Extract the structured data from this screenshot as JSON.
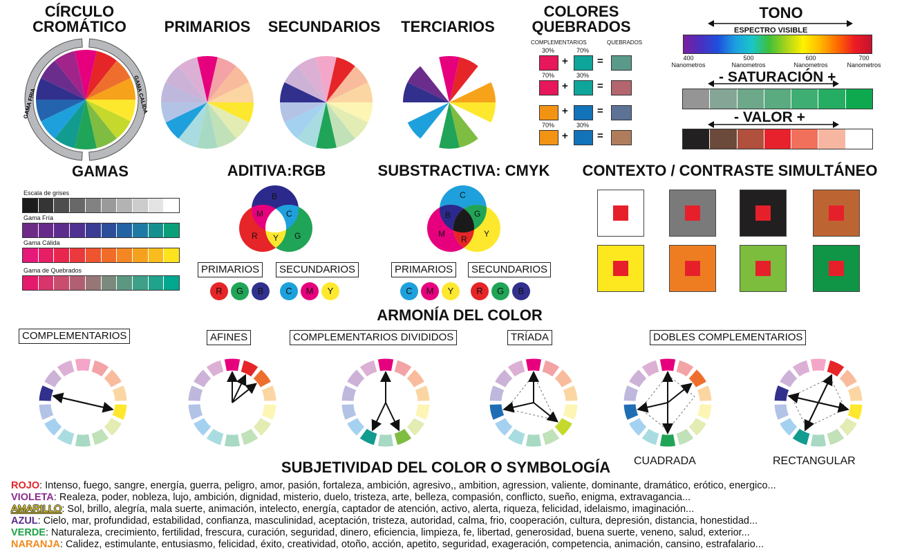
{
  "titles": {
    "circulo_1": "CÍRCULO",
    "circulo_2": "CROMÁTICO",
    "primarios": "PRIMARIOS",
    "secundarios": "SECUNDARIOS",
    "terciarios": "TERCIARIOS",
    "quebrados_1": "COLORES",
    "quebrados_2": "QUEBRADOS",
    "tono": "TONO",
    "gamas": "GAMAS",
    "aditiva": "ADITIVA:RGB",
    "substractiva": "SUBSTRACTIVA: CMYK",
    "contexto": "CONTEXTO / CONTRASTE SIMULTÁNEO",
    "armonia": "ARMONÍA DEL COLOR",
    "subjetividad": "SUBJETIVIDAD DEL COLOR O SYMBOLOGÍA"
  },
  "wheel_ring": {
    "fria": "GAMA FRIA",
    "calida": "GAMA CALIDA"
  },
  "wheel_colors": [
    "#e6007e",
    "#e52528",
    "#ee6f2d",
    "#f7a21b",
    "#fde82e",
    "#c5d92d",
    "#7fbd42",
    "#20a457",
    "#129b8f",
    "#1ea0dc",
    "#2463ad",
    "#31308d",
    "#6b2d8c",
    "#a1248b"
  ],
  "quebrados": {
    "header_left": "COMPLEMENTARIOS",
    "header_right": "QUEBRADOS",
    "rows": [
      {
        "p1": "30%",
        "p2": "70%",
        "c1": "#e6175a",
        "c2": "#0fa59a",
        "r": "#5a9a8a"
      },
      {
        "p1": "70%",
        "p2": "30%",
        "c1": "#e6175a",
        "c2": "#0fa59a",
        "r": "#b4666e"
      },
      {
        "p1": "",
        "p2": "",
        "c1": "#f39314",
        "c2": "#1273b9",
        "r": "#5d7396"
      },
      {
        "p1": "70%",
        "p2": "30%",
        "c1": "#f39314",
        "c2": "#1273b9",
        "r": "#b07d5c"
      }
    ],
    "plus": "+",
    "equals": "="
  },
  "tono": {
    "espectro": "ESPECTRO VISIBLE",
    "ticks": [
      {
        "nm": "400",
        "unit": "Nanometros"
      },
      {
        "nm": "500",
        "unit": "Nanometros"
      },
      {
        "nm": "600",
        "unit": "Nanometros"
      },
      {
        "nm": "700",
        "unit": "Nanometros"
      }
    ],
    "saturacion": "- SATURACIÓN +",
    "saturacion_colors": [
      "#959595",
      "#85a596",
      "#6ea88b",
      "#5aab80",
      "#3fae73",
      "#26ad64",
      "#0ea94f"
    ],
    "valor": "- VALOR +",
    "valor_colors": [
      "#222021",
      "#6b4a3c",
      "#b0503d",
      "#e8222c",
      "#f0705b",
      "#f6b6a1",
      "#ffffff"
    ]
  },
  "gamas": {
    "strips": [
      {
        "label": "Escala de grises",
        "colors": [
          "#1c1c1c",
          "#353535",
          "#4e4e4e",
          "#686868",
          "#828282",
          "#9a9a9a",
          "#b3b3b3",
          "#cccccc",
          "#e4e4e4",
          "#ffffff"
        ]
      },
      {
        "label": "Gama Fría",
        "colors": [
          "#6e2a87",
          "#662b8a",
          "#5c2d8d",
          "#4f3191",
          "#3b3d94",
          "#2b4d9a",
          "#2463a3",
          "#1e7aa4",
          "#15908f",
          "#0a9f78"
        ]
      },
      {
        "label": "Gama Cálida",
        "colors": [
          "#e6187a",
          "#e61e63",
          "#e8264e",
          "#ea3a3d",
          "#ee5430",
          "#f16c28",
          "#f48623",
          "#f6a11e",
          "#f9bb1d",
          "#fde21e"
        ]
      },
      {
        "label": "Gama de Quebrados",
        "colors": [
          "#e61a6b",
          "#d7356c",
          "#c84d6f",
          "#b06072",
          "#977676",
          "#7b8a7d",
          "#5c9782",
          "#3ea088",
          "#1fa38c",
          "#02a790"
        ]
      }
    ]
  },
  "aditiva": {
    "b": "B",
    "r": "R",
    "g": "G",
    "m": "M",
    "c": "C",
    "y": "Y",
    "primarios": "PRIMARIOS",
    "secundarios": "SECUNDARIOS",
    "dots_prim": [
      {
        "t": "R",
        "c": "#e52528"
      },
      {
        "t": "G",
        "c": "#20a457"
      },
      {
        "t": "B",
        "c": "#31308d"
      }
    ],
    "dots_sec": [
      {
        "t": "C",
        "c": "#1ea0dc"
      },
      {
        "t": "M",
        "c": "#e6007e"
      },
      {
        "t": "Y",
        "c": "#fde82e"
      }
    ]
  },
  "substractiva": {
    "c": "C",
    "m": "M",
    "y": "Y",
    "b": "B",
    "g": "G",
    "r": "R",
    "primarios": "PRIMARIOS",
    "secundarios": "SECUNDARIOS",
    "dots_prim": [
      {
        "t": "C",
        "c": "#1ea0dc"
      },
      {
        "t": "M",
        "c": "#e6007e"
      },
      {
        "t": "Y",
        "c": "#fde82e"
      }
    ],
    "dots_sec": [
      {
        "t": "R",
        "c": "#e52528"
      },
      {
        "t": "G",
        "c": "#20a457"
      },
      {
        "t": "B",
        "c": "#31308d"
      }
    ]
  },
  "contexto": {
    "backgrounds": [
      "#ffffff",
      "#7a7a7a",
      "#221f20",
      "#bd6532",
      "#fde81f",
      "#ee7d22",
      "#7cbd3d",
      "#109446"
    ],
    "square": "#e6202a"
  },
  "armonia": {
    "labels": {
      "complementarios": "COMPLEMENTARIOS",
      "afines": "AFINES",
      "divididos": "COMPLEMENTARIOS DIVIDIDOS",
      "triada": "TRÍADA",
      "dobles": "DOBLES COMPLEMENTARIOS",
      "cuadrada": "CUADRADA",
      "rectangular": "RECTANGULAR"
    },
    "pale": [
      "#f3a6c7",
      "#f3a3a5",
      "#f8bc9c",
      "#fbd6a3",
      "#fdf5b4",
      "#e2ecb3",
      "#c1e1b8",
      "#a8d9c3",
      "#a8dce0",
      "#a5d1f0",
      "#b3c3e6",
      "#bdb8dc",
      "#cdb2d8",
      "#dcb0d4"
    ],
    "full": [
      "#e6007e",
      "#e52528",
      "#ee6f2d",
      "#f7a21b",
      "#fde82e",
      "#c5d92d",
      "#7fbd42",
      "#20a457",
      "#129b8f",
      "#1ea0dc",
      "#1f6eb4",
      "#31308d",
      "#6b2d8c",
      "#a1248b"
    ]
  },
  "symbology": [
    {
      "word": "ROJO",
      "color": "#e52528",
      "text": ": Intenso, fuego, sangre, energía, guerra, peligro, amor, pasión, fortaleza, ambición, agresivo,, ambition, agression, valiente, dominante, dramático, erótico, energico..."
    },
    {
      "word": "VIOLETA",
      "color": "#8a2b8f",
      "text": ": Realeza, poder, nobleza, lujo, ambición, dignidad, misterio, duelo, tristeza, arte, belleza, compasión, conflicto, sueño, enigma, extravagancia..."
    },
    {
      "word": "AMARILLO",
      "color": "#e8d21a",
      "text": ": Sol, brillo, alegría, mala suerte, animación, intelecto, energía, captador de atención, activo, alerta, riqueza, felicidad, idelaismo, imaginación..."
    },
    {
      "word": "AZUL",
      "color": "#5a2b8a",
      "text": ": Cielo, mar, profundidad, estabilidad, confianza, masculinidad, aceptación, tristeza, autoridad, calma, frio, cooperación, cultura, depresión, distancia, honestidad..."
    },
    {
      "word": "VERDE",
      "color": "#1fa048",
      "text": ": Naturaleza, crecimiento, fertilidad, frescura, curación, seguridad, dinero, eficiencia, limpieza, fe, libertad, generosidad, buena suerte, veneno, salud, exterior..."
    },
    {
      "word": "NARANJA",
      "color": "#f08a1c",
      "text": ": Calidez, estimulante, entusiasmo, felicidad, éxito, creatividad, otoño, acción, apetito, seguridad, exageración, competencia, animación, cansino, estrafalario..."
    }
  ]
}
